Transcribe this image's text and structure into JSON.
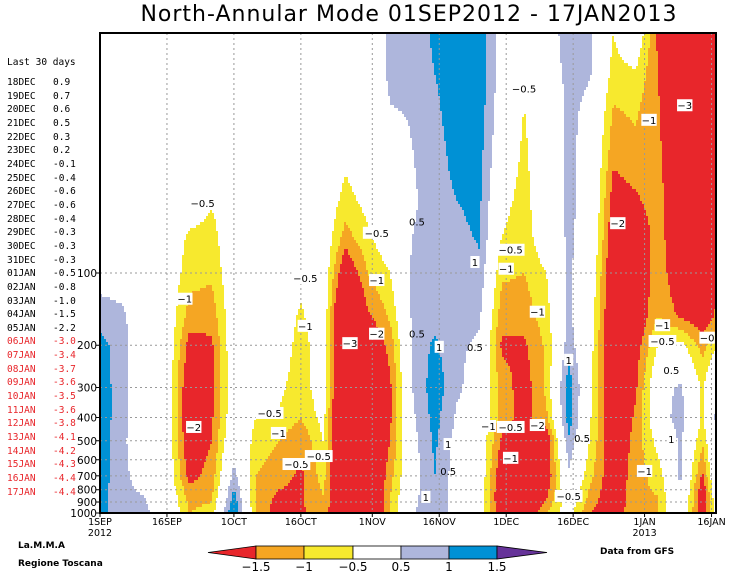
{
  "title": "North-Annular Mode 01SEP2012 - 17JAN2013",
  "recent": {
    "heading": "Last 30 days",
    "entries": [
      {
        "date": "18DEC",
        "value": "0.9"
      },
      {
        "date": "19DEC",
        "value": "0.7"
      },
      {
        "date": "20DEC",
        "value": "0.6"
      },
      {
        "date": "21DEC",
        "value": "0.5"
      },
      {
        "date": "22DEC",
        "value": "0.3"
      },
      {
        "date": "23DEC",
        "value": "0.2"
      },
      {
        "date": "24DEC",
        "value": "-0.1"
      },
      {
        "date": "25DEC",
        "value": "-0.4"
      },
      {
        "date": "26DEC",
        "value": "-0.6"
      },
      {
        "date": "27DEC",
        "value": "-0.6"
      },
      {
        "date": "28DEC",
        "value": "-0.4"
      },
      {
        "date": "29DEC",
        "value": "-0.3"
      },
      {
        "date": "30DEC",
        "value": "-0.3"
      },
      {
        "date": "31DEC",
        "value": "-0.3"
      },
      {
        "date": "01JAN",
        "value": "-0.5"
      },
      {
        "date": "02JAN",
        "value": "-0.8"
      },
      {
        "date": "03JAN",
        "value": "-1.0"
      },
      {
        "date": "04JAN",
        "value": "-1.5"
      },
      {
        "date": "05JAN",
        "value": "-2.2"
      },
      {
        "date": "06JAN",
        "value": "-3.0"
      },
      {
        "date": "07JAN",
        "value": "-3.4"
      },
      {
        "date": "08JAN",
        "value": "-3.7"
      },
      {
        "date": "09JAN",
        "value": "-3.6"
      },
      {
        "date": "10JAN",
        "value": "-3.5"
      },
      {
        "date": "11JAN",
        "value": "-3.6"
      },
      {
        "date": "12JAN",
        "value": "-3.8"
      },
      {
        "date": "13JAN",
        "value": "-4.1"
      },
      {
        "date": "14JAN",
        "value": "-4.2"
      },
      {
        "date": "15JAN",
        "value": "-4.3"
      },
      {
        "date": "16JAN",
        "value": "-4.4"
      },
      {
        "date": "17JAN",
        "value": "-4.4"
      }
    ],
    "highlight_color": "#e8262b"
  },
  "credits": {
    "left1": "La.M.M.A",
    "left2": "Regione Toscana",
    "right": "Data from GFS"
  },
  "chart_data": {
    "type": "heatmap",
    "title": "North-Annular Mode 01SEP2012 - 17JAN2013",
    "xlim": [
      "2012-09-01",
      "2013-01-17"
    ],
    "ylim": [
      1000,
      10
    ],
    "yscale": "log",
    "grid": true,
    "x_ticks": [
      {
        "date": "2012-09-01",
        "label": "1SEP",
        "sub": "2012"
      },
      {
        "date": "2012-09-16",
        "label": "16SEP",
        "sub": ""
      },
      {
        "date": "2012-10-01",
        "label": "1OCT",
        "sub": ""
      },
      {
        "date": "2012-10-16",
        "label": "16OCT",
        "sub": ""
      },
      {
        "date": "2012-11-01",
        "label": "1NOV",
        "sub": ""
      },
      {
        "date": "2012-11-16",
        "label": "16NOV",
        "sub": ""
      },
      {
        "date": "2012-12-01",
        "label": "1DEC",
        "sub": ""
      },
      {
        "date": "2012-12-16",
        "label": "16DEC",
        "sub": ""
      },
      {
        "date": "2013-01-01",
        "label": "1JAN",
        "sub": "2013"
      },
      {
        "date": "2013-01-16",
        "label": "16JAN",
        "sub": ""
      }
    ],
    "y_ticks": [
      100,
      200,
      300,
      400,
      500,
      600,
      700,
      800,
      900,
      1000
    ],
    "colorbar": {
      "bounds": [
        -1.5,
        -1,
        -0.5,
        0.5,
        1,
        1.5
      ],
      "labels": [
        "-1.5",
        "-1",
        "-0.5",
        "0.5",
        "1",
        "1.5"
      ],
      "colors": [
        "#e8262b",
        "#f5a623",
        "#f7e92e",
        "#ffffff",
        "#aeb6dc",
        "#0091d5",
        "#663399"
      ]
    },
    "levels": [
      10,
      15,
      20,
      30,
      50,
      70,
      100,
      150,
      200,
      300,
      400,
      500,
      700,
      850,
      1000
    ],
    "columns": [
      {
        "date": "2012-09-01",
        "values": [
          0,
          0,
          0,
          0,
          0,
          0,
          0.3,
          0.7,
          1.2,
          1.3,
          1.3,
          1.3,
          1.3,
          1.2,
          1.2
        ]
      },
      {
        "date": "2012-09-06",
        "values": [
          0,
          0,
          0,
          0,
          0,
          0,
          0.2,
          0.6,
          0.7,
          0.7,
          0.7,
          0.6,
          0.6,
          0.6,
          0.6
        ]
      },
      {
        "date": "2012-09-11",
        "values": [
          0,
          0,
          0,
          0,
          0,
          0,
          0,
          0,
          0,
          0,
          0,
          0.1,
          0.3,
          0.5,
          0.6
        ]
      },
      {
        "date": "2012-09-16",
        "values": [
          0,
          0,
          0,
          0,
          0,
          0,
          0,
          0,
          0,
          0,
          0,
          0,
          0,
          0.1,
          0.2
        ]
      },
      {
        "date": "2012-09-21",
        "values": [
          0,
          0,
          0,
          0,
          0,
          -0.6,
          -0.8,
          -1.2,
          -1.7,
          -2.1,
          -2.2,
          -2.0,
          -1.7,
          -1.2,
          -1.0
        ]
      },
      {
        "date": "2012-09-26",
        "values": [
          0,
          0,
          0,
          0,
          -0.45,
          -0.7,
          -0.9,
          -1.3,
          -1.6,
          -1.7,
          -1.6,
          -1.5,
          -1.3,
          -1.1,
          -0.8
        ]
      },
      {
        "date": "2012-10-01",
        "values": [
          0,
          0,
          0,
          0,
          0,
          0,
          0,
          0,
          0,
          0,
          0,
          0.2,
          0.7,
          1.2,
          1.6
        ]
      },
      {
        "date": "2012-10-06",
        "values": [
          0,
          0,
          0,
          0,
          0,
          0,
          0,
          0,
          0,
          -0.2,
          -0.5,
          -0.7,
          -1.0,
          -1.1,
          -1.1
        ]
      },
      {
        "date": "2012-10-11",
        "values": [
          0,
          0,
          0,
          0,
          0,
          0,
          0,
          0,
          0,
          -0.3,
          -0.6,
          -1.0,
          -1.3,
          -1.6,
          -1.8
        ]
      },
      {
        "date": "2012-10-16",
        "values": [
          0,
          0,
          0,
          0,
          0,
          0,
          -0.3,
          -0.6,
          -0.8,
          -0.9,
          -1.0,
          -1.4,
          -1.6,
          -1.6,
          -1.6
        ]
      },
      {
        "date": "2012-10-21",
        "values": [
          0,
          0,
          0,
          0,
          0,
          0,
          0,
          0,
          0,
          0,
          -0.3,
          -0.5,
          -0.8,
          -1.0,
          -1.1
        ]
      },
      {
        "date": "2012-10-26",
        "values": [
          0,
          0,
          0,
          -0.3,
          -0.7,
          -1.2,
          -2.1,
          -3.1,
          -3.3,
          -3.3,
          -3.2,
          -3.1,
          -3.0,
          -2.5,
          -2.8
        ]
      },
      {
        "date": "2012-10-31",
        "values": [
          0,
          0,
          0,
          0,
          -0.3,
          -0.6,
          -1.0,
          -1.6,
          -2.2,
          -2.6,
          -2.6,
          -2.5,
          -2.6,
          -2.6,
          -3.0
        ]
      },
      {
        "date": "2012-11-05",
        "values": [
          0.6,
          0.6,
          0.5,
          0,
          0,
          0,
          -0.5,
          -0.9,
          -1.3,
          -1.6,
          -1.6,
          -1.5,
          -1.2,
          -1.0,
          -0.9
        ]
      },
      {
        "date": "2012-11-10",
        "values": [
          0.7,
          0.7,
          0.6,
          0.5,
          0.4,
          0.5,
          0.6,
          0.6,
          0.6,
          0.5,
          0.4,
          0.3,
          0.2,
          0.3,
          0.4
        ]
      },
      {
        "date": "2012-11-15",
        "values": [
          1.1,
          1.0,
          0.9,
          0.8,
          0.8,
          0.8,
          0.8,
          0.8,
          1.1,
          1.3,
          1.2,
          1.1,
          1.0,
          1.0,
          1.0
        ]
      },
      {
        "date": "2012-11-20",
        "values": [
          1.3,
          1.3,
          1.3,
          1.2,
          1.0,
          0.9,
          0.8,
          0.7,
          0.6,
          0.6,
          0.4,
          0.3,
          0.2,
          0.1,
          0.1
        ]
      },
      {
        "date": "2012-11-25",
        "values": [
          1.4,
          1.4,
          1.3,
          1.2,
          1.1,
          1.05,
          0.9,
          0.6,
          0.4,
          0.2,
          0.1,
          0,
          0,
          0,
          0
        ]
      },
      {
        "date": "2012-11-30",
        "values": [
          0.2,
          0.2,
          0.1,
          0,
          -0.3,
          -0.5,
          -0.9,
          -1.3,
          -1.6,
          -1.2,
          -1.2,
          -1.6,
          -2.0,
          -2.2,
          -2.0
        ]
      },
      {
        "date": "2012-12-05",
        "values": [
          0,
          -0.2,
          -0.5,
          -0.6,
          -0.7,
          -0.8,
          -1.0,
          -1.3,
          -1.6,
          -1.8,
          -1.7,
          -2.1,
          -2.5,
          -2.5,
          -2.3
        ]
      },
      {
        "date": "2012-12-10",
        "values": [
          0,
          0,
          0,
          0,
          0,
          0,
          -0.5,
          -0.7,
          -0.9,
          -0.9,
          -1.1,
          -2.0,
          -2.0,
          -1.6,
          -1.0
        ]
      },
      {
        "date": "2012-12-15",
        "values": [
          0.9,
          0.7,
          0.6,
          0.6,
          0.6,
          0.6,
          0.6,
          0.6,
          0.8,
          1.3,
          1.3,
          0.9,
          0.4,
          0,
          -0.2
        ]
      },
      {
        "date": "2012-12-20",
        "values": [
          0.5,
          0.5,
          0.4,
          0.3,
          0.3,
          0.2,
          0,
          -0.2,
          -0.3,
          -0.4,
          -0.5,
          -0.6,
          -0.9,
          -1.2,
          -1.5
        ]
      },
      {
        "date": "2012-12-25",
        "values": [
          -0.5,
          -0.7,
          -1.0,
          -1.3,
          -1.8,
          -2.0,
          -2.2,
          -2.3,
          -2.4,
          -2.3,
          -2.2,
          -2.1,
          -2.0,
          -2.0,
          -2.0
        ]
      },
      {
        "date": "2012-12-30",
        "values": [
          0.1,
          -0.6,
          -0.9,
          -1.1,
          -1.6,
          -2.1,
          -2.3,
          -2.1,
          -1.8,
          -1.6,
          -1.4,
          -1.3,
          -1.2,
          -1.1,
          -1.0
        ]
      },
      {
        "date": "2013-01-04",
        "values": [
          -1.6,
          -1.5,
          -1.4,
          -1.3,
          -1.2,
          -1.2,
          -1.1,
          -1.0,
          -0.5,
          0.2,
          0.1,
          -0.3,
          -0.8,
          -1.0,
          -1.0
        ]
      },
      {
        "date": "2013-01-09",
        "values": [
          -2.8,
          -3.1,
          -2.9,
          -2.6,
          -2.3,
          -2.2,
          -2.1,
          -1.6,
          -0.3,
          0.6,
          0.8,
          0.6,
          0.6,
          0.5,
          0.3
        ]
      },
      {
        "date": "2013-01-14",
        "values": [
          -2.4,
          -2.6,
          -2.8,
          -2.6,
          -2.4,
          -2.3,
          -2.2,
          -2.0,
          -1.2,
          -0.6,
          -0.6,
          -0.9,
          -1.6,
          -2.1,
          -2.0
        ]
      },
      {
        "date": "2013-01-17",
        "values": [
          -2.0,
          -2.2,
          -2.4,
          -2.3,
          -2.2,
          -2.1,
          -1.9,
          -1.4,
          -0.6,
          0.5,
          0.6,
          0.5,
          0.3,
          0,
          -0.3
        ]
      }
    ],
    "contour_labels": [
      {
        "text": "-0.5",
        "date": "2012-09-24",
        "p": 51
      },
      {
        "text": "-1",
        "date": "2012-09-20",
        "p": 128
      },
      {
        "text": "-2",
        "date": "2012-09-22",
        "p": 438
      },
      {
        "text": "-0.5",
        "date": "2012-11-02",
        "p": 68
      },
      {
        "text": "-1",
        "date": "2012-11-02",
        "p": 107
      },
      {
        "text": "-3",
        "date": "2012-10-27",
        "p": 196
      },
      {
        "text": "-2",
        "date": "2012-11-02",
        "p": 179
      },
      {
        "text": "-0.5",
        "date": "2012-10-17",
        "p": 105
      },
      {
        "text": "-1",
        "date": "2012-10-17",
        "p": 166
      },
      {
        "text": "-0.5",
        "date": "2012-10-09",
        "p": 383
      },
      {
        "text": "-1",
        "date": "2012-10-11",
        "p": 464
      },
      {
        "text": "-0.5",
        "date": "2012-10-15",
        "p": 625
      },
      {
        "text": "-0.5",
        "date": "2012-10-20",
        "p": 579
      },
      {
        "text": "-0.5",
        "date": "2012-12-05",
        "p": 17
      },
      {
        "text": "0.5",
        "date": "2012-11-11",
        "p": 61
      },
      {
        "text": "1",
        "date": "2012-11-24",
        "p": 90
      },
      {
        "text": "-0.5",
        "date": "2012-12-02",
        "p": 80
      },
      {
        "text": "-1",
        "date": "2012-12-01",
        "p": 96
      },
      {
        "text": "-1",
        "date": "2012-12-08",
        "p": 145
      },
      {
        "text": "0.5",
        "date": "2012-11-11",
        "p": 179
      },
      {
        "text": "1",
        "date": "2012-11-16",
        "p": 203
      },
      {
        "text": "0.5",
        "date": "2012-11-24",
        "p": 203
      },
      {
        "text": "1",
        "date": "2012-12-15",
        "p": 230
      },
      {
        "text": "-2",
        "date": "2012-12-26",
        "p": 62
      },
      {
        "text": "-1",
        "date": "2013-01-02",
        "p": 23
      },
      {
        "text": "-3",
        "date": "2013-01-10",
        "p": 20
      },
      {
        "text": "-1",
        "date": "2013-01-05",
        "p": 165
      },
      {
        "text": "-0.5",
        "date": "2013-01-05",
        "p": 192
      },
      {
        "text": "-0",
        "date": "2013-01-15",
        "p": 186
      },
      {
        "text": "0.5",
        "date": "2013-01-07",
        "p": 254
      },
      {
        "text": "1",
        "date": "2013-01-07",
        "p": 492
      },
      {
        "text": "-1",
        "date": "2013-01-01",
        "p": 668
      },
      {
        "text": "-0.5",
        "date": "2012-12-15",
        "p": 849
      },
      {
        "text": "0.5",
        "date": "2012-12-18",
        "p": 487
      },
      {
        "text": "1",
        "date": "2012-11-13",
        "p": 857
      },
      {
        "text": "0.5",
        "date": "2012-11-18",
        "p": 668
      },
      {
        "text": "1",
        "date": "2012-11-18",
        "p": 516
      },
      {
        "text": "-1",
        "date": "2012-11-27",
        "p": 434
      },
      {
        "text": "-0.5",
        "date": "2012-12-02",
        "p": 438
      },
      {
        "text": "-2",
        "date": "2012-12-08",
        "p": 430
      },
      {
        "text": "-1",
        "date": "2012-12-02",
        "p": 589
      }
    ]
  }
}
